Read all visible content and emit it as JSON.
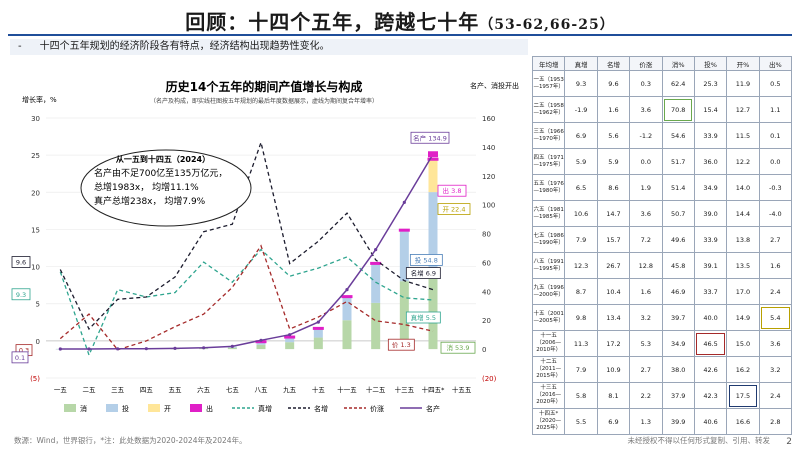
{
  "header": {
    "title": "回顾：十四个五年，跨越七十年",
    "title_suffix": "（53-62,66-25）",
    "bullet": "-",
    "subtitle": "十四个五年规划的经济阶段各有特点，经济结构出现趋势性变化。"
  },
  "chart_data": {
    "type": "bar",
    "title": "历史14个五年的期间产值增长与构成",
    "subtitle": "（名产及构成，即实线柱图按五年规划的最后年度数据展示，虚线为期间复合年增率）",
    "ylabel_left": "增长率，%",
    "ylabel_right": "名产、消投开出，万亿元",
    "categories": [
      "一五",
      "二五",
      "三五",
      "四五",
      "五五",
      "六五",
      "七五",
      "八五",
      "九五",
      "十五",
      "十一五",
      "十二五",
      "十三五",
      "十四五*",
      "十五五"
    ],
    "ylim_left": [
      -5,
      30
    ],
    "ylim_right": [
      -20,
      160
    ],
    "left_ticks": [
      "(5)",
      "0",
      "5",
      "10",
      "15",
      "20",
      "25",
      "30"
    ],
    "right_ticks": [
      "(20)",
      "0",
      "20",
      "40",
      "60",
      "80",
      "100",
      "120",
      "140",
      "160"
    ],
    "stacked_bars": {
      "消": [
        0.1,
        0.1,
        0.1,
        0.1,
        0.2,
        0.5,
        1.0,
        3.0,
        4.8,
        8.0,
        20.0,
        32.0,
        47.0,
        53.9,
        null
      ],
      "投": [
        0.05,
        0.05,
        0.05,
        0.1,
        0.2,
        0.3,
        0.6,
        1.8,
        3.2,
        6.0,
        16.0,
        27.0,
        35.0,
        54.8,
        null
      ],
      "开": [
        0,
        0,
        0,
        0,
        0,
        0,
        0,
        0,
        0,
        0,
        0,
        0,
        0,
        22.4,
        null
      ],
      "出": [
        0,
        0,
        0,
        0,
        0,
        0,
        0,
        0.1,
        0.2,
        0.7,
        2.0,
        2.0,
        2.0,
        3.8,
        null
      ]
    },
    "lines": {
      "真增": [
        9.3,
        -1.9,
        6.9,
        5.9,
        6.5,
        10.6,
        7.9,
        12.3,
        8.7,
        9.8,
        11.3,
        7.9,
        5.8,
        5.5,
        null
      ],
      "名增": [
        9.6,
        1.6,
        5.6,
        5.9,
        8.6,
        14.7,
        15.7,
        26.7,
        10.4,
        13.4,
        17.2,
        10.9,
        8.1,
        6.9,
        null
      ],
      "价涨": [
        0.3,
        3.6,
        -1.2,
        0.0,
        1.9,
        3.6,
        7.2,
        12.8,
        1.6,
        3.2,
        5.3,
        2.7,
        2.2,
        1.3,
        null
      ],
      "名产": [
        0.1,
        0.1,
        0.2,
        0.3,
        0.5,
        0.9,
        1.9,
        6.1,
        10.0,
        18.7,
        41.2,
        68.9,
        101.6,
        134.9,
        null
      ]
    },
    "series_colors": {
      "消": "#b7d7a8",
      "投": "#b4cfe8",
      "开": "#ffe699",
      "出": "#e01fc7",
      "真增": "#2fa58f",
      "名增": "#1c1c2e",
      "价涨": "#a52a2a",
      "名产": "#6a3d9a"
    },
    "legend": [
      "消",
      "投",
      "开",
      "出",
      "真增",
      "名增",
      "价涨",
      "名产"
    ],
    "callout": {
      "heading": "从一五到十四五（2024）",
      "line1": "名产由不足700亿至135万亿元，",
      "line2": "总增1983x，  均增11.1%",
      "line3": "真产总增238x，  均增7.9%"
    },
    "labels": {
      "start_real": "9.3",
      "start_nominal": "9.6",
      "start_price": "0.3",
      "start_gdp": "0.1",
      "gdp_end": "名产 134.9",
      "exports_end": "出 3.8",
      "open_end": "开 22.4",
      "invest_end": "投 54.8",
      "nominal_end": "名增 6.9",
      "real_end": "真增 5.5",
      "consume_end": "消 53.9",
      "price_end": "价 1.3"
    }
  },
  "table": {
    "headers": [
      "年均增",
      "真增",
      "名增",
      "价涨",
      "消%",
      "投%",
      "开%",
      "出%"
    ],
    "rows": [
      {
        "period": "一五（1953—1957年）",
        "values": [
          "9.3",
          "9.6",
          "0.3",
          "62.4",
          "25.3",
          "11.9",
          "0.5"
        ]
      },
      {
        "period": "二五（1958—1962年）",
        "values": [
          "-1.9",
          "1.6",
          "3.6",
          "70.8",
          "15.4",
          "12.7",
          "1.1"
        ]
      },
      {
        "period": "三五（1966—1970年）",
        "values": [
          "6.9",
          "5.6",
          "-1.2",
          "54.6",
          "33.9",
          "11.5",
          "0.1"
        ]
      },
      {
        "period": "四五（1971—1975年）",
        "values": [
          "5.9",
          "5.9",
          "0.0",
          "51.7",
          "36.0",
          "12.2",
          "0.0"
        ]
      },
      {
        "period": "五五（1976—1980年）",
        "values": [
          "6.5",
          "8.6",
          "1.9",
          "51.4",
          "34.9",
          "14.0",
          "-0.3"
        ]
      },
      {
        "period": "六五（1981—1985年）",
        "values": [
          "10.6",
          "14.7",
          "3.6",
          "50.7",
          "39.0",
          "14.4",
          "-4.0"
        ]
      },
      {
        "period": "七五（1986—1990年）",
        "values": [
          "7.9",
          "15.7",
          "7.2",
          "49.6",
          "33.9",
          "13.8",
          "2.7"
        ]
      },
      {
        "period": "八五（1991—1995年）",
        "values": [
          "12.3",
          "26.7",
          "12.8",
          "45.8",
          "39.1",
          "13.5",
          "1.6"
        ]
      },
      {
        "period": "九五（1996—2000年）",
        "values": [
          "8.7",
          "10.4",
          "1.6",
          "46.9",
          "33.7",
          "17.0",
          "2.4"
        ]
      },
      {
        "period": "十五（2001—2005年）",
        "values": [
          "9.8",
          "13.4",
          "3.2",
          "39.7",
          "40.0",
          "14.9",
          "5.4"
        ]
      },
      {
        "period": "十一五（2006—2010年）",
        "values": [
          "11.3",
          "17.2",
          "5.3",
          "34.9",
          "46.5",
          "15.0",
          "3.6"
        ]
      },
      {
        "period": "十二五（2011—2015年）",
        "values": [
          "7.9",
          "10.9",
          "2.7",
          "38.0",
          "42.6",
          "16.2",
          "3.2"
        ]
      },
      {
        "period": "十三五（2016—2020年）",
        "values": [
          "5.8",
          "8.1",
          "2.2",
          "37.9",
          "42.3",
          "17.5",
          "2.4"
        ]
      },
      {
        "period": "十四五*（2020—2025年）",
        "values": [
          "5.5",
          "6.9",
          "1.3",
          "39.9",
          "40.6",
          "16.6",
          "2.8"
        ]
      }
    ]
  },
  "footer": {
    "source": "数源：Wind，世界银行，*注：此处数据为2020-2024年及2024年。",
    "rights": "未经授权不得以任何形式复制、引用、转发",
    "page": "2"
  }
}
